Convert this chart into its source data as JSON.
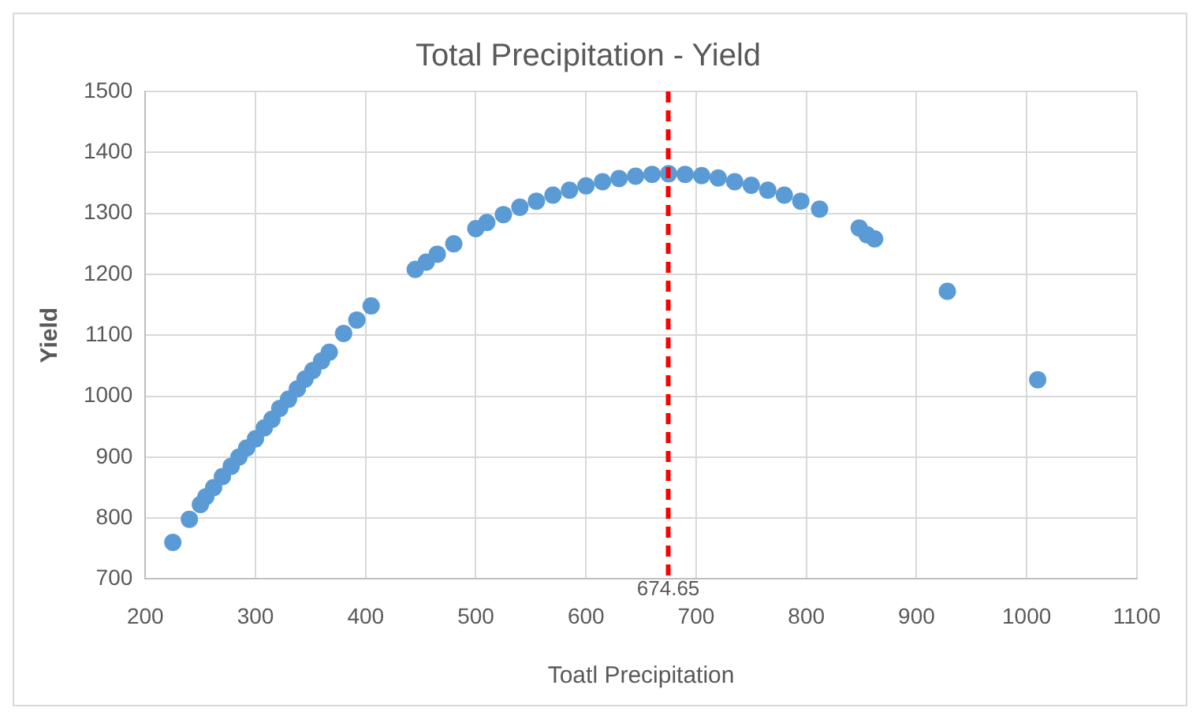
{
  "chart_data": {
    "type": "scatter",
    "title": "Total Precipitation - Yield",
    "xlabel": "Toatl Precipitation",
    "ylabel": "Yield",
    "x": [
      225,
      240,
      250,
      255,
      262,
      270,
      278,
      285,
      292,
      300,
      308,
      315,
      322,
      330,
      338,
      345,
      352,
      360,
      367,
      380,
      392,
      405,
      445,
      455,
      465,
      480,
      500,
      510,
      525,
      540,
      555,
      570,
      585,
      600,
      615,
      630,
      645,
      660,
      675,
      690,
      705,
      720,
      735,
      750,
      765,
      780,
      795,
      812,
      848,
      855,
      862,
      928,
      1010
    ],
    "series": [
      {
        "color": "#5b9bd5",
        "values": [
          760,
          798,
          822,
          835,
          850,
          868,
          885,
          900,
          915,
          930,
          948,
          962,
          980,
          995,
          1012,
          1028,
          1042,
          1058,
          1072,
          1103,
          1125,
          1148,
          1208,
          1220,
          1233,
          1250,
          1275,
          1285,
          1298,
          1310,
          1320,
          1330,
          1338,
          1345,
          1352,
          1357,
          1361,
          1364,
          1365,
          1364,
          1362,
          1358,
          1352,
          1346,
          1338,
          1330,
          1320,
          1307,
          1276,
          1265,
          1258,
          1172,
          1027
        ]
      }
    ],
    "xlim": [
      200,
      1100
    ],
    "xticks": [
      200,
      300,
      400,
      500,
      600,
      700,
      800,
      900,
      1000,
      1100
    ],
    "ylim": [
      700,
      1500
    ],
    "yticks": [
      700,
      800,
      900,
      1000,
      1100,
      1200,
      1300,
      1400,
      1500
    ],
    "grid": true,
    "legend": false,
    "marker": "circle",
    "ref_lines": [
      {
        "axis": "x",
        "value": 674.65,
        "label": "674.65",
        "color": "#ff0000",
        "line_style": "dashed"
      }
    ]
  }
}
